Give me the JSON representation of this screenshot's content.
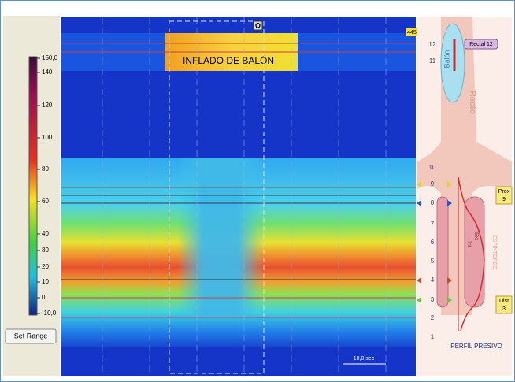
{
  "window": {
    "corner_label": "445",
    "marker": "O",
    "event_label": "INFLADO DE BALÓN",
    "time_scale": "10,0 sec"
  },
  "colorbar": {
    "labels": [
      "150,0",
      "140",
      "120",
      "100",
      "80",
      "60",
      "40",
      "30",
      "20",
      "10",
      "0",
      "-10,0"
    ]
  },
  "button": "Set Range",
  "profile": {
    "channels": [
      "12",
      "11",
      "10",
      "9",
      "8",
      "7",
      "6",
      "5",
      "4",
      "3",
      "2",
      "1"
    ],
    "balloon": "Balón",
    "rectum": "Recto",
    "sphincters": "ESFINTERES",
    "external": "Ext",
    "internal": "Int",
    "title": "PERFIL PRESIVO",
    "tags": [
      {
        "name": "Rectal 12"
      },
      {
        "name": "Prox",
        "channel": "9"
      },
      {
        "name": "Dist",
        "channel": "3"
      }
    ]
  }
}
